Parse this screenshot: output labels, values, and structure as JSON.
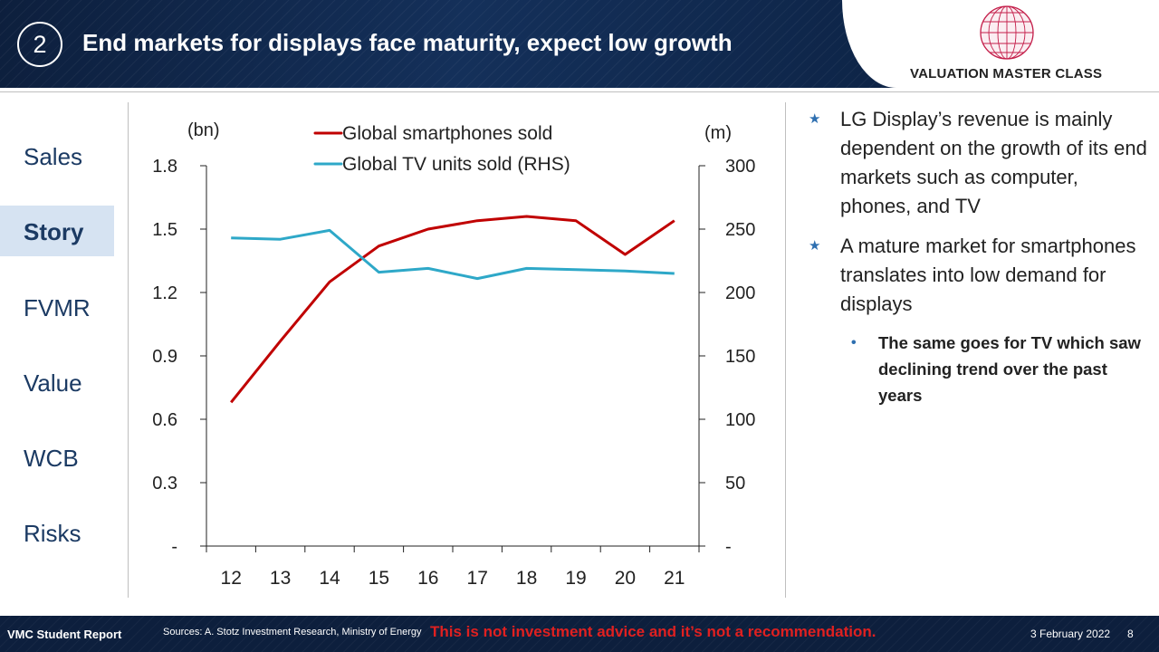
{
  "header": {
    "section_number": "2",
    "title": "End markets for displays face maturity, expect low growth",
    "logo_text": "VALUATION MASTER CLASS"
  },
  "nav": {
    "items": [
      "Sales",
      "Story",
      "FVMR",
      "Value",
      "WCB",
      "Risks"
    ],
    "active": "Story"
  },
  "bullets": [
    "LG Display’s revenue is mainly dependent on the growth of its end markets such as computer, phones, and TV",
    "A mature market for smartphones translates into low demand for displays"
  ],
  "sub_bullet": "The same goes for TV which saw declining trend over the past years",
  "footer": {
    "report": "VMC Student Report",
    "sources": "Sources: A. Stotz Investment Research, Ministry of Energy",
    "disclaimer": "This is not investment advice and it’s not a recommendation.",
    "date": "3 February 2022",
    "page": "8"
  },
  "colors": {
    "smartphones": "#c00000",
    "tv": "#2ea8c8",
    "nav_active_bg": "#d6e3f2",
    "header_bg": "#0d1f3d"
  },
  "chart_data": {
    "type": "line",
    "categories": [
      "12",
      "13",
      "14",
      "15",
      "16",
      "17",
      "18",
      "19",
      "20",
      "21"
    ],
    "left_unit": "(bn)",
    "right_unit": "(m)",
    "left_ticks": [
      "1.8",
      "1.5",
      "1.2",
      "0.9",
      "0.6",
      "0.3",
      "-"
    ],
    "right_ticks": [
      "300",
      "250",
      "200",
      "150",
      "100",
      "50",
      "-"
    ],
    "ylim_left": [
      0,
      1.8
    ],
    "ylim_right": [
      0,
      300
    ],
    "legend_placement": "top-center",
    "grid": false,
    "series": [
      {
        "name": "Global smartphones sold",
        "axis": "left",
        "values": [
          0.68,
          0.97,
          1.25,
          1.42,
          1.5,
          1.54,
          1.56,
          1.54,
          1.38,
          1.54
        ]
      },
      {
        "name": "Global TV units sold (RHS)",
        "axis": "right",
        "values": [
          243,
          242,
          249,
          216,
          219,
          211,
          219,
          218,
          217,
          215
        ]
      }
    ]
  }
}
